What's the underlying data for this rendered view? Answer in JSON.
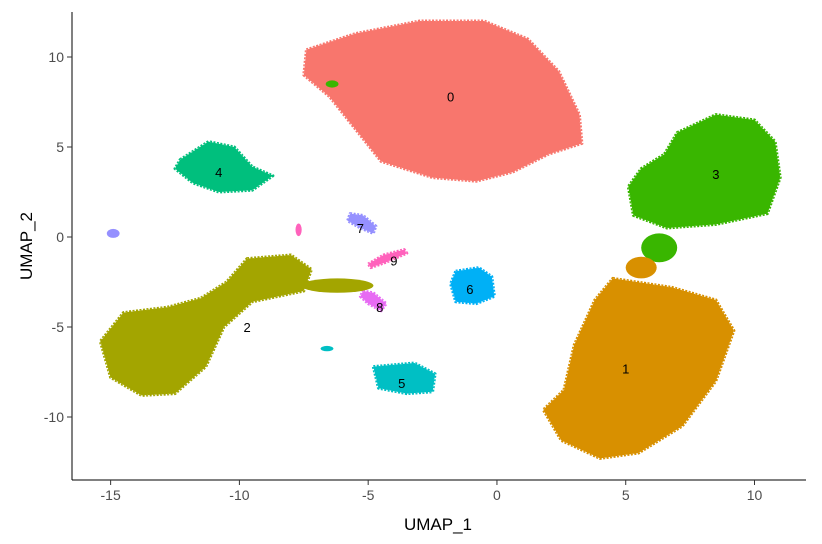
{
  "chart_data": {
    "type": "scatter",
    "title": "",
    "xlabel": "UMAP_1",
    "ylabel": "UMAP_2",
    "xlim": [
      -16.5,
      12
    ],
    "ylim": [
      -13.5,
      12.5
    ],
    "x_ticks": [
      -15,
      -10,
      -5,
      0,
      5,
      10
    ],
    "y_ticks": [
      -10,
      -5,
      0,
      5,
      10
    ],
    "x_tick_labels": [
      "-15",
      "-10",
      "-5",
      "0",
      "5",
      "10"
    ],
    "y_tick_labels": [
      "-10",
      "-5",
      "0",
      "5",
      "10"
    ],
    "grid": false,
    "legend": "none",
    "clusters": [
      {
        "name": "0",
        "color": "#F8766D",
        "label_x": -1.8,
        "label_y": 7.8,
        "outline": [
          [
            -7.4,
            10.4
          ],
          [
            -5.5,
            11.3
          ],
          [
            -3,
            12.0
          ],
          [
            -0.5,
            12.0
          ],
          [
            1.2,
            11.0
          ],
          [
            2.4,
            9.2
          ],
          [
            3.2,
            6.8
          ],
          [
            3.3,
            5.2
          ],
          [
            2.0,
            4.6
          ],
          [
            0.6,
            3.6
          ],
          [
            -0.8,
            3.1
          ],
          [
            -2.5,
            3.3
          ],
          [
            -4.5,
            4.2
          ],
          [
            -5.5,
            6.0
          ],
          [
            -6.5,
            7.8
          ],
          [
            -7.5,
            9.0
          ]
        ]
      },
      {
        "name": "1",
        "color": "#D89000",
        "label_x": 5.0,
        "label_y": -7.3,
        "outline": [
          [
            4.5,
            -2.3
          ],
          [
            6.8,
            -2.8
          ],
          [
            8.5,
            -3.5
          ],
          [
            9.2,
            -5.2
          ],
          [
            8.5,
            -8.0
          ],
          [
            7.2,
            -10.5
          ],
          [
            5.5,
            -12.0
          ],
          [
            4.0,
            -12.3
          ],
          [
            2.5,
            -11.3
          ],
          [
            1.8,
            -9.6
          ],
          [
            2.6,
            -8.5
          ],
          [
            3.0,
            -6.0
          ],
          [
            3.8,
            -3.5
          ]
        ]
      },
      {
        "name": "2",
        "color": "#A3A500",
        "label_x": -9.7,
        "label_y": -5.0,
        "outline": [
          [
            -9.7,
            -1.2
          ],
          [
            -8.0,
            -1.0
          ],
          [
            -7.2,
            -1.8
          ],
          [
            -7.5,
            -3.0
          ],
          [
            -9.5,
            -3.6
          ],
          [
            -10.6,
            -5.0
          ],
          [
            -11.3,
            -7.2
          ],
          [
            -12.5,
            -8.7
          ],
          [
            -13.8,
            -8.8
          ],
          [
            -15.0,
            -7.8
          ],
          [
            -15.4,
            -5.8
          ],
          [
            -14.5,
            -4.2
          ],
          [
            -12.8,
            -3.9
          ],
          [
            -11.5,
            -3.4
          ],
          [
            -10.5,
            -2.5
          ]
        ]
      },
      {
        "name": "3",
        "color": "#39B600",
        "label_x": 8.5,
        "label_y": 3.5,
        "outline": [
          [
            7.0,
            5.8
          ],
          [
            8.5,
            6.8
          ],
          [
            10.0,
            6.5
          ],
          [
            10.8,
            5.3
          ],
          [
            11.0,
            3.3
          ],
          [
            10.5,
            1.3
          ],
          [
            8.5,
            0.7
          ],
          [
            6.6,
            0.5
          ],
          [
            5.3,
            1.2
          ],
          [
            5.1,
            2.8
          ],
          [
            5.6,
            3.8
          ],
          [
            6.5,
            4.6
          ]
        ]
      },
      {
        "name": "4",
        "color": "#00BF7D",
        "label_x": -10.8,
        "label_y": 3.6,
        "outline": [
          [
            -12.3,
            4.3
          ],
          [
            -11.2,
            5.3
          ],
          [
            -10.2,
            5.0
          ],
          [
            -9.5,
            3.9
          ],
          [
            -8.7,
            3.4
          ],
          [
            -9.5,
            2.6
          ],
          [
            -10.8,
            2.5
          ],
          [
            -11.8,
            3.0
          ],
          [
            -12.5,
            3.8
          ]
        ]
      },
      {
        "name": "5",
        "color": "#00BFC4",
        "label_x": -3.7,
        "label_y": -8.1,
        "outline": [
          [
            -4.8,
            -7.2
          ],
          [
            -3.2,
            -7.0
          ],
          [
            -2.4,
            -7.6
          ],
          [
            -2.5,
            -8.6
          ],
          [
            -3.5,
            -8.7
          ],
          [
            -4.6,
            -8.4
          ]
        ]
      },
      {
        "name": "6",
        "color": "#00B0F6",
        "label_x": -1.05,
        "label_y": -2.9,
        "outline": [
          [
            -1.6,
            -1.9
          ],
          [
            -0.7,
            -1.7
          ],
          [
            -0.2,
            -2.2
          ],
          [
            -0.1,
            -3.3
          ],
          [
            -0.8,
            -3.7
          ],
          [
            -1.6,
            -3.6
          ],
          [
            -1.8,
            -2.6
          ]
        ]
      },
      {
        "name": "7",
        "color": "#9590FF",
        "label_x": -5.3,
        "label_y": 0.5,
        "outline": [
          [
            -5.7,
            1.3
          ],
          [
            -5.2,
            1.2
          ],
          [
            -4.7,
            0.6
          ],
          [
            -4.8,
            0.2
          ],
          [
            -5.3,
            0.5
          ],
          [
            -5.8,
            0.9
          ]
        ]
      },
      {
        "name": "8",
        "color": "#E76BF3",
        "label_x": -4.55,
        "label_y": -3.9,
        "outline": [
          [
            -5.2,
            -3.0
          ],
          [
            -4.8,
            -3.1
          ],
          [
            -4.3,
            -3.7
          ],
          [
            -4.5,
            -4.1
          ],
          [
            -5.0,
            -3.7
          ],
          [
            -5.3,
            -3.3
          ]
        ]
      },
      {
        "name": "9",
        "color": "#FF62BC",
        "label_x": -4.0,
        "label_y": -1.3,
        "outline": [
          [
            -5.0,
            -1.5
          ],
          [
            -4.4,
            -1.0
          ],
          [
            -3.6,
            -0.7
          ],
          [
            -3.5,
            -0.9
          ],
          [
            -4.3,
            -1.4
          ],
          [
            -4.9,
            -1.7
          ]
        ]
      }
    ],
    "small_groups": [
      {
        "cluster": "7",
        "color": "#9590FF",
        "x": -14.9,
        "y": 0.2,
        "rx": 0.25,
        "ry": 0.25
      },
      {
        "cluster": "5",
        "color": "#00BFC4",
        "x": -6.6,
        "y": -6.2,
        "rx": 0.25,
        "ry": 0.15
      },
      {
        "cluster": "3",
        "color": "#39B600",
        "x": -6.4,
        "y": 8.5,
        "rx": 0.25,
        "ry": 0.2
      },
      {
        "cluster": "3",
        "color": "#39B600",
        "x": 6.3,
        "y": -0.6,
        "rx": 0.7,
        "ry": 0.8
      },
      {
        "cluster": "1",
        "color": "#D89000",
        "x": 5.6,
        "y": -1.7,
        "rx": 0.6,
        "ry": 0.6
      },
      {
        "cluster": "9",
        "color": "#FF62BC",
        "x": -7.7,
        "y": 0.4,
        "rx": 0.12,
        "ry": 0.35
      },
      {
        "cluster": "2",
        "color": "#A3A500",
        "x": -6.2,
        "y": -2.7,
        "rx": 1.4,
        "ry": 0.4
      }
    ]
  }
}
